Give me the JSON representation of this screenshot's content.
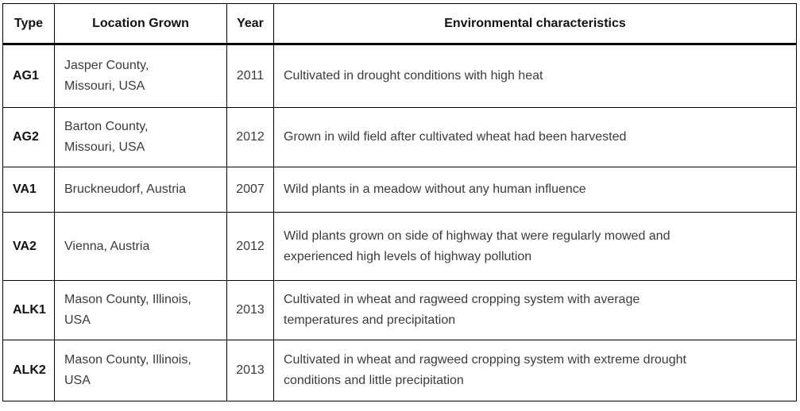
{
  "colors": {
    "border": "#000000",
    "body_text": "#3b3b3b",
    "bold_text": "#121212",
    "background": "#ffffff"
  },
  "table": {
    "columns": [
      {
        "label": "Type"
      },
      {
        "label": "Location Grown"
      },
      {
        "label": "Year"
      },
      {
        "label": "Environmental characteristics"
      }
    ],
    "rows": [
      {
        "type": "AG1",
        "location": "Jasper County,\nMissouri, USA",
        "year": "2011",
        "env": "Cultivated in drought conditions with high heat"
      },
      {
        "type": "AG2",
        "location": "Barton County,\nMissouri, USA",
        "year": "2012",
        "env": "Grown in wild field after cultivated wheat had been harvested"
      },
      {
        "type": "VA1",
        "location": "Bruckneudorf, Austria",
        "year": "2007",
        "env": "Wild plants in a meadow without any human influence"
      },
      {
        "type": "VA2",
        "location": "Vienna, Austria",
        "year": "2012",
        "env": "Wild plants grown on side of highway that were regularly mowed and\nexperienced high levels of highway pollution"
      },
      {
        "type": "ALK1",
        "location": "Mason County, Illinois,\nUSA",
        "year": "2013",
        "env": "Cultivated in wheat and ragweed cropping system with average\ntemperatures and precipitation"
      },
      {
        "type": "ALK2",
        "location": "Mason County, Illinois,\nUSA",
        "year": "2013",
        "env": "Cultivated in wheat and ragweed cropping system with extreme drought\nconditions and little precipitation"
      }
    ]
  }
}
